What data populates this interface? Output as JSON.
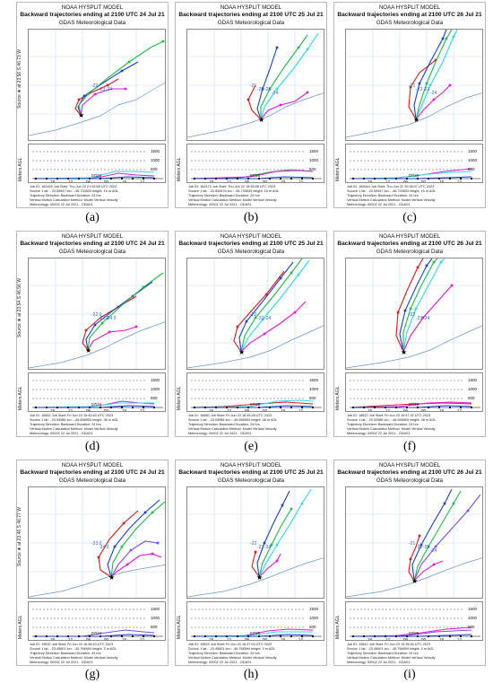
{
  "header": {
    "model": "NOAA HYSPLIT MODEL",
    "data_source": "GDAS Meteorological Data"
  },
  "colors": {
    "red": "#e01818",
    "blue": "#1a3fd6",
    "green": "#21b94a",
    "magenta": "#e31ad6",
    "cyan": "#2fd7e8",
    "purple": "#7a4df0"
  },
  "axis": {
    "y_label": "Meters AGL",
    "levels": [
      "1500",
      "1000",
      "500"
    ],
    "times": [
      "18",
      "12",
      "06",
      "00",
      "18",
      "12"
    ]
  },
  "panels": [
    {
      "caption": "(a)",
      "title": "Backward trajectories ending at 2100 UTC 24 Jul 21",
      "source_label": "Source ★ at 23.56 S  46.73 W",
      "lats": [
        "-22",
        "-23",
        "-24"
      ],
      "footer": [
        "Job ID: 162469        Job Start: Thu Jun 22 21:53:59 UTC 2023",
        "Source 1    lat.: -23.55947    lon.: -46.733533    height: 15 m AGL",
        "Trajectory Direction: Backward     Duration: 24 hrs",
        "Vertical Motion Calculation Method:     Model Vertical Velocity",
        "Meteorology: 0000Z 22 Jul 2021 - GDAS1"
      ],
      "date_label": "07/24"
    },
    {
      "caption": "(b)",
      "title": "Backward trajectories ending at 2100 UTC 25 Jul 21",
      "source_label": "",
      "lats": [
        "-21",
        "-22",
        "-23",
        "-24"
      ],
      "footer": [
        "Job ID: 162473        Job Start: Thu Jun 22 15:35:56 UTC 2023",
        "Source 1    lat.: -23.559476    lon.: -46.733533    height: 15 m AGL",
        "Trajectory Direction: Backward     Duration: 24 hrs",
        "Vertical Motion Calculation Method:     Model Vertical Velocity",
        "Meteorology: 0000Z 22 Jul 2021 - GDAS1"
      ],
      "date_label": "07/25"
    },
    {
      "caption": "(c)",
      "title": "Backward trajectories ending at 2100 UTC 26 Jul 21",
      "source_label": "",
      "lats": [
        "-21",
        "-22",
        "-23",
        "-24"
      ],
      "footer": [
        "Job ID: 162644        Job Start: Thu Jun 22 20:38:07 UTC 2023",
        "Source 1    lat.: -23.55947    lon.: -46.733533    height: 15 m AGL",
        "Trajectory Direction: Backward     Duration: 24 hrs",
        "Vertical Motion Calculation Method:     Model Vertical Velocity",
        "Meteorology: 0000Z 22 Jul 2021 - GDAS1"
      ],
      "date_label": "07/26"
    },
    {
      "caption": "(d)",
      "title": "Backward trajectories ending at 2100 UTC 24 Jul 21",
      "source_label": "Source ★ at 23.54 S  46.56 W",
      "lats": [
        "-22.0",
        "-23.0",
        "-24.0"
      ],
      "footer": [
        "Job ID: 18362        Job Start: Fri Jun 23 15:40:40 UTC 2023",
        "Source 1    lat.: -23.53986    lon.: -46.558593    height: 38 m AGL",
        "Trajectory Direction: Backward     Duration: 24 hrs",
        "Vertical Motion Calculation Method:     Model Vertical Velocity",
        "Meteorology: 0000Z 22 Jul 2021 - GDAS1"
      ],
      "date_label": "07/24"
    },
    {
      "caption": "(e)",
      "title": "Backward trajectories ending at 2100 UTC 25 Jul 21",
      "source_label": "",
      "lats": [
        "-22",
        "-23",
        "-24"
      ],
      "footer": [
        "Job ID: 18480        Job Start: Fri Jun 23 16:45:28 UTC 2023",
        "Source 1    lat.: -23.53986    lon.: -46.558593    height: 38 m AGL",
        "Trajectory Direction: Backward     Duration: 24 hrs",
        "Vertical Motion Calculation Method:     Model Vertical Velocity",
        "Meteorology: 0000Z 22 Jul 2021 - GDAS1"
      ],
      "date_label": "07/25"
    },
    {
      "caption": "(f)",
      "title": "Backward trajectories ending at 2100 UTC 26 Jul 21",
      "source_label": "",
      "lats": [
        "-22",
        "-23",
        "-24"
      ],
      "footer": [
        "Job ID: 18522        Job Start: Fri Jun 23 15:47:32 UTC 2023",
        "Source 1    lat.: -23.53986    lon.: -46.558593    height: 38 m AGL",
        "Trajectory Direction: Backward     Duration: 24 hrs",
        "Vertical Motion Calculation Method:     Model Vertical Velocity",
        "Meteorology: 0000Z 22 Jul 2021 - GDAS1"
      ],
      "date_label": "07/26"
    },
    {
      "caption": "(g)",
      "title": "Backward trajectories ending at 2100 UTC 24 Jul 21",
      "source_label": "Source ★ at 23.46 S  46.77 W",
      "lats": [
        "-23.0",
        "-24.0"
      ],
      "footer": [
        "Job ID: 19632        Job Start: Fri Jun 23 16:38:43 UTC 2023",
        "Source 1    lat.: -23.45601    lon.: -46.766594    height: 3 m AGL",
        "Trajectory Direction: Backward     Duration: 24 hrs",
        "Vertical Motion Calculation Method:     Model Vertical Velocity",
        "Meteorology: 0000Z 22 Jul 2021 - GDAS1"
      ],
      "date_label": "07/24"
    },
    {
      "caption": "(h)",
      "title": "Backward trajectories ending at 2100 UTC 25 Jul 21",
      "source_label": "",
      "lats": [
        "-22",
        "-23",
        "-24"
      ],
      "footer": [
        "Job ID: 19593        Job Start: Fri Jun 23 16:37:04 UTC 2023",
        "Source 1    lat.: -23.45601    lon.: -46.766594    height: 3 m AGL",
        "Trajectory Direction: Backward     Duration: 24 hrs",
        "Vertical Motion Calculation Method:     Model Vertical Velocity",
        "Meteorology: 0000Z 22 Jul 2021 - GDAS1"
      ],
      "date_label": "07/25"
    },
    {
      "caption": "(i)",
      "title": "Backward trajectories ending at 2100 UTC 26 Jul 21",
      "source_label": "",
      "lats": [
        "-21",
        "-22",
        "-23",
        "-24"
      ],
      "footer": [
        "Job ID: 19642        Job Start: Fri Jun 23 15:35:46 UTC 2023",
        "Source 1    lat.: -23.45601    lon.: -46.766594    height: 3 m AGL",
        "Trajectory Direction: Backward     Duration: 24 hrs",
        "Vertical Motion Calculation Method:     Model Vertical Velocity",
        "Meteorology: 0000Z 22 Jul 2021 - GDAS1"
      ],
      "date_label": "07/26"
    }
  ]
}
